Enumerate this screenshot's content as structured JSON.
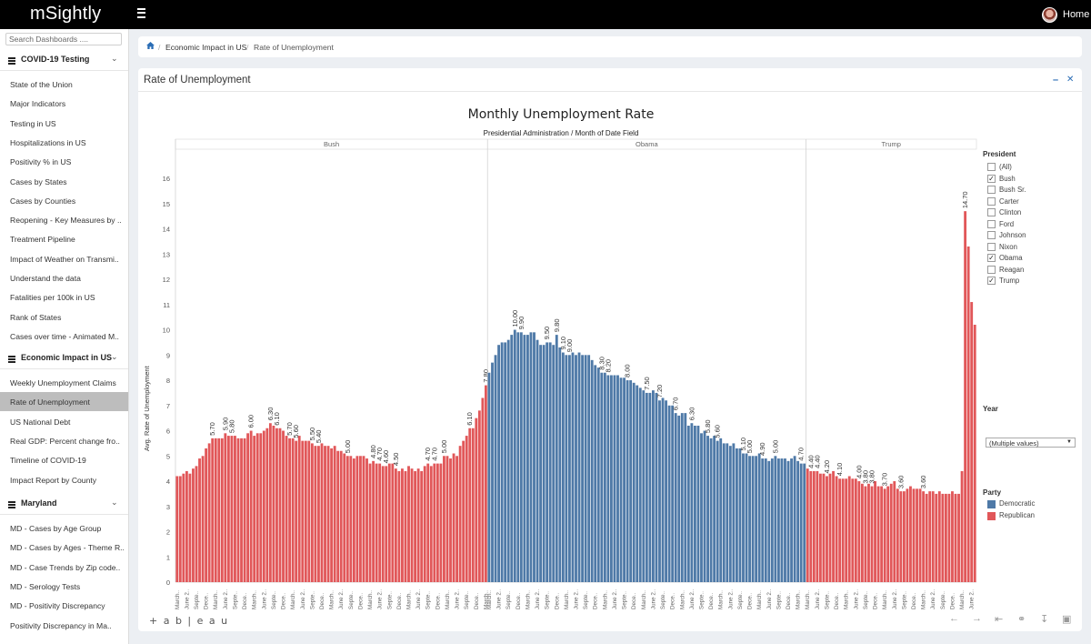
{
  "app": {
    "logo": "mSightly",
    "home_label": "Home"
  },
  "sidebar": {
    "search_placeholder": "Search Dashboards ....",
    "sections": [
      {
        "title": "COVID-19 Testing",
        "items": [
          "State of the Union",
          "Major Indicators",
          "Testing in US",
          "Hospitalizations in US",
          "Positivity % in US",
          "Cases by States",
          "Cases by Counties",
          "Reopening - Key Measures by ..",
          "Treatment Pipeline",
          "Impact of Weather on Transmi..",
          "Understand the data",
          "Fatalities per 100k in US",
          "Rank of States",
          "Cases over time - Animated M.."
        ]
      },
      {
        "title": "Economic Impact in US",
        "items": [
          "Weekly Unemployment Claims",
          "Rate of Unemployment",
          "US National Debt",
          "Real GDP: Percent change fro..",
          "Timeline of COVID-19",
          "Impact Report by County"
        ]
      },
      {
        "title": "Maryland",
        "items": [
          "MD - Cases by Age Group",
          "MD - Cases by Ages - Theme R..",
          "MD - Case Trends by Zip code..",
          "MD - Serology Tests",
          "MD - Positivity Discrepancy",
          "Positivity Discrepancy in Ma.."
        ]
      }
    ],
    "active_item": "Rate of Unemployment"
  },
  "breadcrumb": {
    "items": [
      "Economic Impact in US",
      "Rate of Unemployment"
    ]
  },
  "card": {
    "title": "Rate of Unemployment",
    "minimize_icon": "minus-icon",
    "close_icon": "close-icon"
  },
  "filters": {
    "president_title": "President",
    "presidents": [
      {
        "label": "(All)",
        "checked": false
      },
      {
        "label": "Bush",
        "checked": true
      },
      {
        "label": "Bush Sr.",
        "checked": false
      },
      {
        "label": "Carter",
        "checked": false
      },
      {
        "label": "Clinton",
        "checked": false
      },
      {
        "label": "Ford",
        "checked": false
      },
      {
        "label": "Johnson",
        "checked": false
      },
      {
        "label": "Nixon",
        "checked": false
      },
      {
        "label": "Obama",
        "checked": true
      },
      {
        "label": "Reagan",
        "checked": false
      },
      {
        "label": "Trump",
        "checked": true
      }
    ],
    "year_title": "Year",
    "year_value": "(Multiple values)",
    "party_title": "Party",
    "party_legend": [
      {
        "label": "Democratic",
        "color": "#4e79a7"
      },
      {
        "label": "Republican",
        "color": "#e15759"
      }
    ]
  },
  "footer": {
    "brand": "+ a b | e a u"
  },
  "chart_data": {
    "type": "bar",
    "title": "Monthly Unemployment Rate",
    "subtitle_dim1": "Presidential Administration",
    "subtitle_dim2": "Month of Date Field",
    "ylabel": "Avg. Rate of Unemployment",
    "ylim": [
      0,
      16.4
    ],
    "yticks": [
      0,
      1,
      2,
      3,
      4,
      5,
      6,
      7,
      8,
      9,
      10,
      11,
      12,
      13,
      14,
      15,
      16
    ],
    "grid": false,
    "legend": "right",
    "series": [
      {
        "name": "Bush",
        "party": "Republican",
        "color": "#e15759",
        "values": [
          4.2,
          4.2,
          4.3,
          4.4,
          4.3,
          4.5,
          4.6,
          4.9,
          5.0,
          5.3,
          5.5,
          5.7,
          5.7,
          5.7,
          5.7,
          5.9,
          5.8,
          5.8,
          5.8,
          5.7,
          5.7,
          5.7,
          5.9,
          6.0,
          5.8,
          5.9,
          5.9,
          6.0,
          6.1,
          6.3,
          6.2,
          6.1,
          6.1,
          6.0,
          5.8,
          5.7,
          5.7,
          5.6,
          5.8,
          5.6,
          5.6,
          5.6,
          5.5,
          5.4,
          5.4,
          5.5,
          5.4,
          5.4,
          5.3,
          5.4,
          5.2,
          5.2,
          5.1,
          5.0,
          5.0,
          4.9,
          5.0,
          5.0,
          5.0,
          4.9,
          4.7,
          4.8,
          4.7,
          4.7,
          4.6,
          4.6,
          4.7,
          4.7,
          4.5,
          4.4,
          4.5,
          4.4,
          4.6,
          4.5,
          4.4,
          4.5,
          4.4,
          4.6,
          4.7,
          4.6,
          4.7,
          4.7,
          4.7,
          5.0,
          5.0,
          4.9,
          5.1,
          5.0,
          5.4,
          5.6,
          5.8,
          6.1,
          6.1,
          6.5,
          6.8,
          7.3,
          7.8
        ]
      },
      {
        "name": "Obama",
        "party": "Democratic",
        "color": "#4e79a7",
        "values": [
          8.3,
          8.7,
          9.0,
          9.4,
          9.5,
          9.5,
          9.6,
          9.8,
          10.0,
          9.9,
          9.9,
          9.8,
          9.8,
          9.9,
          9.9,
          9.6,
          9.4,
          9.4,
          9.5,
          9.5,
          9.4,
          9.8,
          9.3,
          9.1,
          9.0,
          9.0,
          9.1,
          9.0,
          9.1,
          9.0,
          9.0,
          9.0,
          8.8,
          8.6,
          8.5,
          8.3,
          8.3,
          8.2,
          8.2,
          8.2,
          8.2,
          8.1,
          8.1,
          8.0,
          8.0,
          7.9,
          7.8,
          7.7,
          7.6,
          7.5,
          7.5,
          7.6,
          7.5,
          7.2,
          7.3,
          7.2,
          7.0,
          7.0,
          6.7,
          6.6,
          6.7,
          6.7,
          6.2,
          6.3,
          6.2,
          6.2,
          5.9,
          6.0,
          5.8,
          5.7,
          5.8,
          5.6,
          5.7,
          5.5,
          5.5,
          5.4,
          5.5,
          5.3,
          5.3,
          5.1,
          5.1,
          5.0,
          5.0,
          5.0,
          5.1,
          4.9,
          4.9,
          4.8,
          4.9,
          5.0,
          4.9,
          4.9,
          4.9,
          4.8,
          4.9,
          5.0,
          4.8,
          4.7,
          4.7
        ]
      },
      {
        "name": "Trump",
        "party": "Republican",
        "color": "#e15759",
        "values": [
          4.5,
          4.4,
          4.4,
          4.4,
          4.3,
          4.3,
          4.2,
          4.3,
          4.4,
          4.2,
          4.1,
          4.1,
          4.1,
          4.2,
          4.1,
          4.1,
          4.0,
          3.9,
          3.8,
          3.9,
          3.8,
          4.0,
          3.8,
          3.8,
          3.7,
          3.8,
          3.9,
          4.0,
          3.7,
          3.6,
          3.6,
          3.7,
          3.8,
          3.7,
          3.7,
          3.7,
          3.6,
          3.5,
          3.6,
          3.6,
          3.5,
          3.6,
          3.5,
          3.5,
          3.5,
          3.6,
          3.5,
          3.5,
          4.4,
          14.7,
          13.3,
          11.1,
          10.2
        ]
      }
    ],
    "data_labels": [
      {
        "series": "Bush",
        "values": [
          5.7,
          5.9,
          5.8,
          6.0,
          6.3,
          6.1,
          5.7,
          5.6,
          5.5,
          5.4,
          5.0,
          4.8,
          4.7,
          4.6,
          4.5,
          4.7,
          4.7,
          5.0,
          6.1,
          7.8
        ]
      },
      {
        "series": "Obama",
        "values": [
          10.0,
          9.9,
          9.5,
          9.8,
          9.1,
          9.0,
          8.3,
          8.2,
          8.0,
          7.5,
          7.2,
          6.7,
          6.3,
          5.8,
          5.6,
          5.1,
          5.0,
          4.9,
          5.0,
          4.7
        ]
      },
      {
        "series": "Trump",
        "values": [
          4.4,
          4.4,
          4.2,
          4.1,
          4.0,
          3.8,
          3.8,
          3.7,
          3.6,
          3.6,
          14.7
        ]
      }
    ],
    "tick_cycle": [
      "March..",
      "June 2..",
      "Septe..",
      "Dece.."
    ]
  }
}
